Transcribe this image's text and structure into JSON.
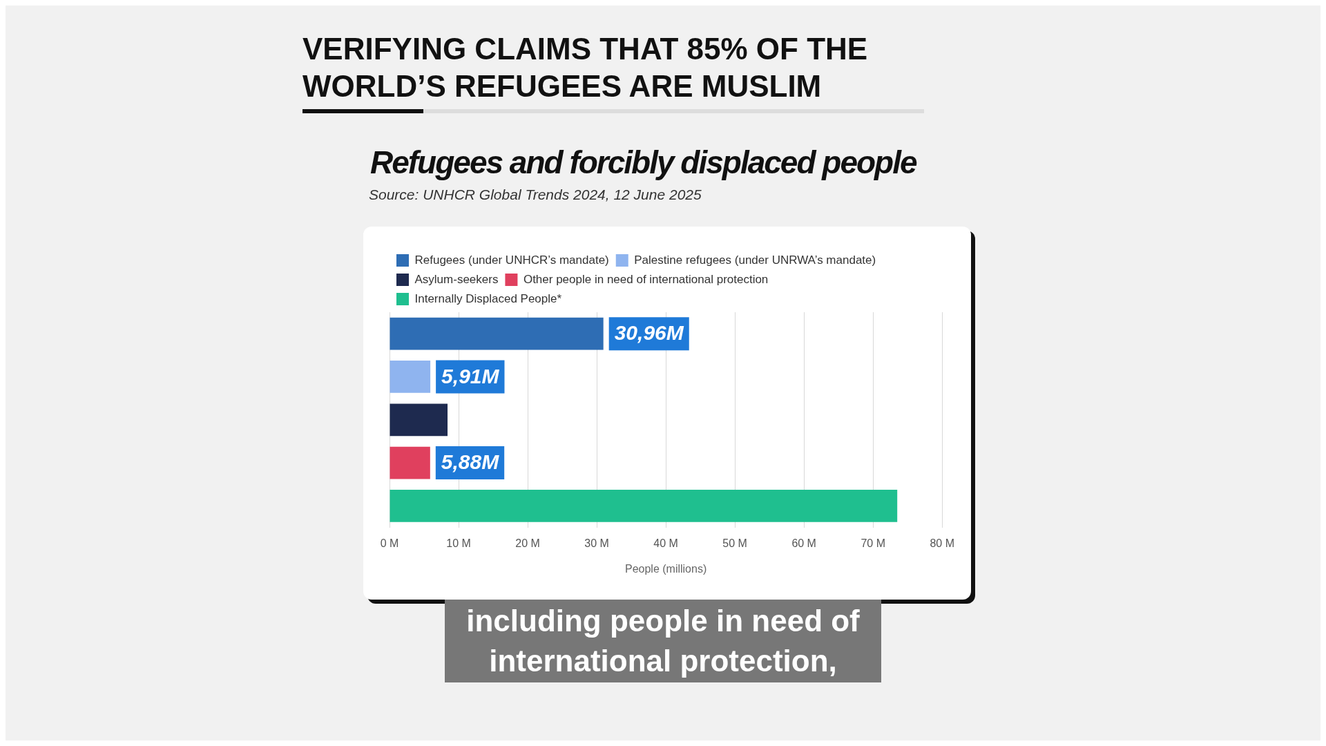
{
  "chart_data": {
    "type": "bar",
    "orientation": "horizontal",
    "title": "VERIFYING CLAIMS THAT 85% OF THE WORLD’S REFUGEES ARE MUSLIM",
    "subtitle": "Refugees and forcibly displaced people",
    "xlabel": "People (millions)",
    "categories": [
      null,
      null,
      null,
      null,
      null
    ],
    "series": [
      {
        "name": "Refugees (under UNHCR’s mandate)",
        "color": "#2e6db4",
        "values": [
          30.96,
          null,
          null,
          null,
          null
        ],
        "value_labels": [
          "30,96M",
          null,
          null,
          null,
          null
        ]
      },
      {
        "name": "Palestine refugees (under UNRWA’s mandate)",
        "color": "#8fb4ef",
        "values": [
          null,
          5.91,
          null,
          null,
          null
        ],
        "value_labels": [
          null,
          "5,91M",
          null,
          null,
          null
        ]
      },
      {
        "name": "Asylum-seekers",
        "color": "#1e2a4f",
        "values": [
          null,
          null,
          8.4,
          null,
          null
        ]
      },
      {
        "name": "Other people in need of international protection",
        "color": "#e0405e",
        "values": [
          null,
          null,
          null,
          5.88,
          null
        ],
        "value_labels": [
          null,
          null,
          null,
          "5,88M",
          null
        ]
      },
      {
        "name": "Internally Displaced People*",
        "color": "#1fbf8f",
        "values": [
          null,
          null,
          null,
          null,
          73.5
        ]
      }
    ],
    "xlim": [
      0,
      80
    ],
    "xticks": [
      {
        "value": 0,
        "label": "0 M"
      },
      {
        "value": 10,
        "label": "10 M"
      },
      {
        "value": 20,
        "label": "20 M"
      },
      {
        "value": 30,
        "label": "30 M"
      },
      {
        "value": 40,
        "label": "40 M"
      },
      {
        "value": 50,
        "label": "50 M"
      },
      {
        "value": 60,
        "label": "60 M"
      },
      {
        "value": 70,
        "label": "70 M"
      },
      {
        "value": 80,
        "label": "80 M"
      }
    ],
    "grid": "x",
    "legend": "top left",
    "tick_labels": "x",
    "annotations": [
      "Source: UNHCR Global Trends 2024, 12 June 2025",
      "including people in need of international protection,"
    ]
  }
}
